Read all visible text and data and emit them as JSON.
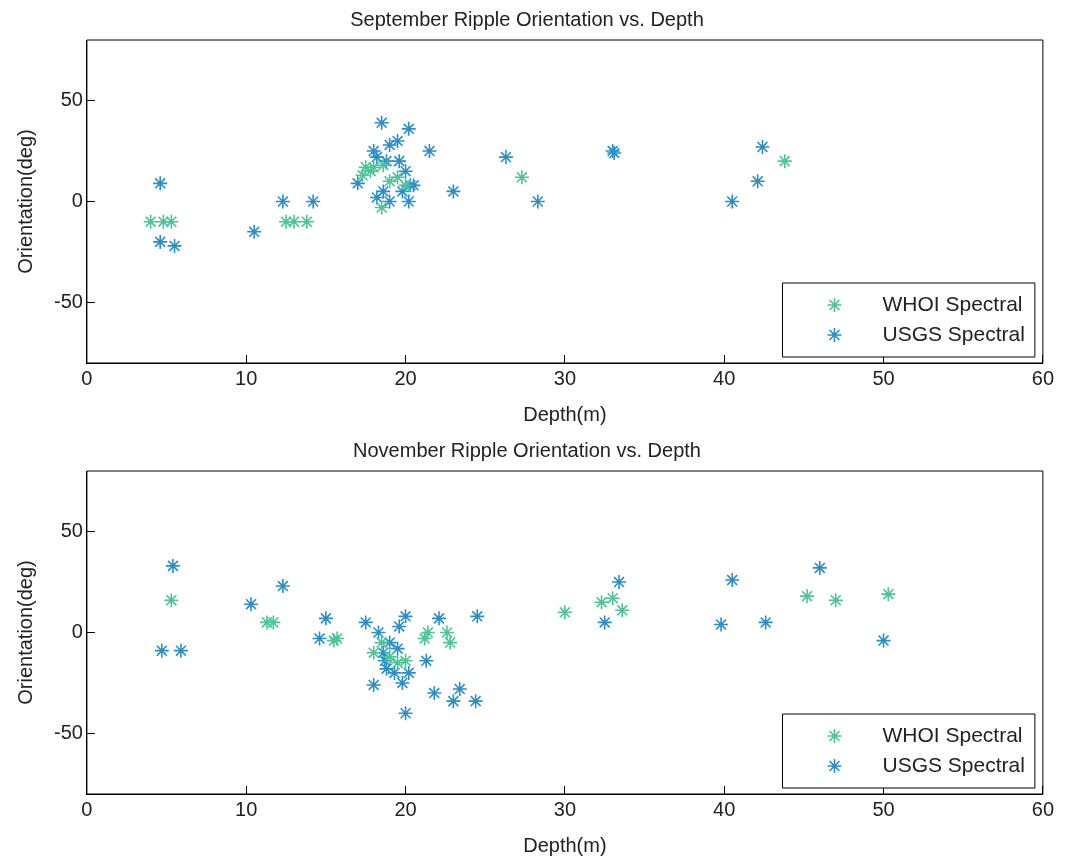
{
  "chart_data": [
    {
      "type": "scatter",
      "title": "September Ripple Orientation vs. Depth",
      "xlabel": "Depth(m)",
      "ylabel": "Orientation(deg)",
      "xlim": [
        0,
        60
      ],
      "xticks": [
        0,
        10,
        20,
        30,
        40,
        50,
        60
      ],
      "ylim": [
        -80,
        80
      ],
      "yticks": [
        -50,
        0,
        50
      ],
      "grid": false,
      "legend": "bottom right",
      "marker": "cross",
      "series": [
        {
          "name": "WHOI Spectral",
          "color": "#4cc496",
          "x": [
            4,
            4.8,
            5.3,
            12.5,
            13,
            13.8,
            17.3,
            17.5,
            17.8,
            18,
            18.5,
            18.6,
            19,
            19.5,
            20,
            27.3,
            43.8
          ],
          "values": [
            -10,
            -10,
            -10,
            -10,
            -10,
            -10,
            13,
            17,
            15,
            17,
            -3,
            18,
            10,
            12,
            8,
            12,
            20
          ]
        },
        {
          "name": "USGS Spectral",
          "color": "#2a8fc8",
          "x": [
            4.6,
            4.6,
            5.5,
            10.5,
            12.3,
            14.2,
            17,
            18,
            18.5,
            19,
            19.5,
            20.2,
            18.2,
            18.8,
            19.6,
            20,
            20.3,
            20.5,
            20.2,
            19,
            18.2,
            18.6,
            19.8,
            21.5,
            23,
            26.3,
            28.3,
            33,
            33.1,
            40.5,
            42.1,
            42.4
          ],
          "values": [
            9,
            -20,
            -22,
            -15,
            0,
            0,
            9,
            25,
            39,
            28,
            30,
            36,
            22,
            20,
            20,
            15,
            8,
            8,
            0,
            0,
            2,
            5,
            5,
            25,
            5,
            22,
            0,
            25,
            24,
            0,
            10,
            27
          ]
        }
      ]
    },
    {
      "type": "scatter",
      "title": "November Ripple Orientation vs. Depth",
      "xlabel": "Depth(m)",
      "ylabel": "Orientation(deg)",
      "xlim": [
        0,
        60
      ],
      "xticks": [
        0,
        10,
        20,
        30,
        40,
        50,
        60
      ],
      "ylim": [
        -80,
        80
      ],
      "yticks": [
        -50,
        0,
        50
      ],
      "grid": false,
      "legend": "bottom right",
      "marker": "cross",
      "series": [
        {
          "name": "WHOI Spectral",
          "color": "#4cc496",
          "x": [
            5.3,
            11.3,
            11.7,
            15.5,
            15.7,
            18,
            18.5,
            19,
            19.5,
            20,
            21.2,
            21.4,
            22.6,
            22.8,
            30,
            32.3,
            33,
            33.6,
            45.2,
            47,
            50.3
          ],
          "values": [
            16,
            5,
            5,
            -4,
            -3,
            -10,
            -5,
            -12,
            -15,
            -14,
            -3,
            0,
            0,
            -5,
            10,
            15,
            17,
            11,
            18,
            16,
            19
          ]
        },
        {
          "name": "USGS Spectral",
          "color": "#2a8fc8",
          "x": [
            4.7,
            5.4,
            5.9,
            10.3,
            12.3,
            14.6,
            15,
            17.5,
            18,
            18.3,
            18.6,
            18.7,
            18.8,
            19,
            19.3,
            19.5,
            19.6,
            19.8,
            20,
            20.2,
            20,
            21.3,
            21.8,
            22.1,
            23,
            23.4,
            24.4,
            24.5,
            32.5,
            33.4,
            39.8,
            40.5,
            42.6,
            46,
            50
          ],
          "values": [
            -9,
            33,
            -9,
            14,
            23,
            -3,
            7,
            5,
            -26,
            0,
            -10,
            -14,
            -18,
            -5,
            -20,
            -8,
            3,
            -25,
            8,
            -20,
            -40,
            -14,
            -30,
            7,
            -34,
            -28,
            -34,
            8,
            5,
            25,
            4,
            26,
            5,
            32,
            -4
          ]
        }
      ]
    }
  ]
}
